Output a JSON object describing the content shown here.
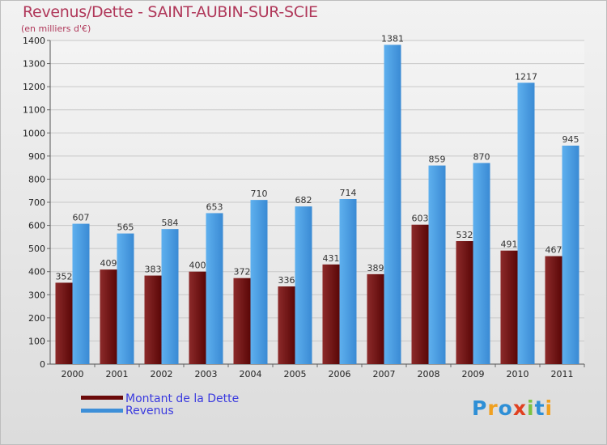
{
  "chart_data": {
    "type": "bar",
    "title": "Revenus/Dette - SAINT-AUBIN-SUR-SCIE",
    "subtitle": "(en milliers d'€)",
    "categories": [
      "2000",
      "2001",
      "2002",
      "2003",
      "2004",
      "2005",
      "2006",
      "2007",
      "2008",
      "2009",
      "2010",
      "2011"
    ],
    "series": [
      {
        "name": "Montant de la Dette",
        "color": "#6b0a0a",
        "values": [
          352,
          409,
          383,
          400,
          372,
          336,
          431,
          389,
          603,
          532,
          491,
          467
        ]
      },
      {
        "name": "Revenus",
        "color": "#3d8fd8",
        "values": [
          607,
          565,
          584,
          653,
          710,
          682,
          714,
          1381,
          859,
          870,
          1217,
          945
        ]
      }
    ],
    "ylim": [
      0,
      1400
    ],
    "yticks": [
      0,
      100,
      200,
      300,
      400,
      500,
      600,
      700,
      800,
      900,
      1000,
      1100,
      1200,
      1300,
      1400
    ],
    "grid": true,
    "legend_position": "bottom-left"
  },
  "legend": {
    "items": [
      {
        "label": "Montant de la Dette",
        "color": "#6b0a0a"
      },
      {
        "label": "Revenus",
        "color": "#3d8fd8"
      }
    ]
  },
  "logo": {
    "text": "Proxiti",
    "letters": [
      {
        "ch": "P",
        "color": "#2e8fd6"
      },
      {
        "ch": "r",
        "color": "#f0a020"
      },
      {
        "ch": "o",
        "color": "#2e8fd6"
      },
      {
        "ch": "x",
        "color": "#e04020"
      },
      {
        "ch": "i",
        "color": "#7cc242"
      },
      {
        "ch": "t",
        "color": "#2e8fd6"
      },
      {
        "ch": "i",
        "color": "#f0a020"
      }
    ]
  }
}
